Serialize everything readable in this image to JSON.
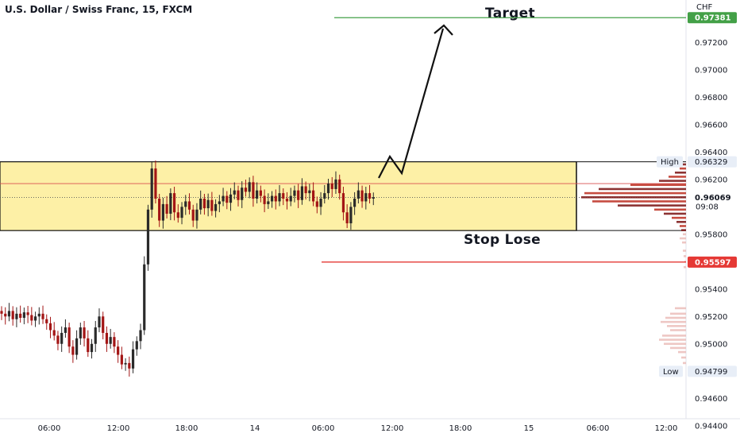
{
  "header": {
    "title": "U.S. Dollar / Swiss Franc, 15, FXCM"
  },
  "annotations": {
    "target": "Target",
    "stop": "Stop Lose"
  },
  "axis": {
    "currency": "CHF"
  },
  "colors": {
    "bull": "#2a2a2a",
    "bear": "#a31515",
    "zone_fill": "#fdf0a6",
    "target": "#43a047",
    "stop": "#e53935",
    "price_line": "#d94f4f",
    "profile_hi": "#c0392b",
    "profile_lo": "#e8b4b0"
  },
  "chart_data": {
    "type": "candlestick",
    "title": "U.S. Dollar / Swiss Franc, 15, FXCM",
    "y_range": [
      0.9432,
      0.9751
    ],
    "y_ticks": [
      0.944,
      0.946,
      0.948,
      0.95,
      0.952,
      0.954,
      0.958,
      0.962,
      0.964,
      0.966,
      0.968,
      0.97,
      0.972
    ],
    "y_tick_labels": [
      "0.94400",
      "0.94600",
      "0.94800",
      "0.95000",
      "0.95200",
      "0.95400",
      "0.95800",
      "0.96200",
      "0.96400",
      "0.96600",
      "0.96800",
      "0.97000",
      "0.97200"
    ],
    "x_ticks": [
      "06:00",
      "12:00",
      "18:00",
      "14",
      "06:00",
      "12:00",
      "18:00",
      "15",
      "06:00",
      "12:00"
    ],
    "price_labels": {
      "target": "0.97381",
      "stop": "0.95597",
      "current": "0.96069",
      "countdown": "09:08",
      "high": "0.96329",
      "low": "0.94799",
      "high_label": "High",
      "low_label": "Low"
    },
    "levels": {
      "target": 0.97381,
      "stop": 0.95597,
      "current": 0.96069,
      "high": 0.96329,
      "low": 0.94799
    },
    "zone": {
      "top": 0.96329,
      "bottom": 0.95827
    },
    "series_close": [
      0.9522,
      0.952,
      0.9524,
      0.9518,
      0.9522,
      0.9519,
      0.9523,
      0.9521,
      0.9517,
      0.952,
      0.9522,
      0.9518,
      0.9515,
      0.951,
      0.9506,
      0.95,
      0.9508,
      0.9512,
      0.9498,
      0.9492,
      0.9504,
      0.9512,
      0.9504,
      0.9494,
      0.95,
      0.9512,
      0.952,
      0.9508,
      0.95,
      0.9505,
      0.9498,
      0.9492,
      0.9485,
      0.9486,
      0.9482,
      0.9496,
      0.9502,
      0.951,
      0.9558,
      0.9598,
      0.9628,
      0.9606,
      0.959,
      0.9602,
      0.9595,
      0.961,
      0.9596,
      0.9592,
      0.96,
      0.9604,
      0.9598,
      0.959,
      0.9598,
      0.9606,
      0.9599,
      0.9605,
      0.9597,
      0.9602,
      0.9604,
      0.9608,
      0.9603,
      0.9609,
      0.9612,
      0.9605,
      0.9614,
      0.9611,
      0.9618,
      0.9606,
      0.9612,
      0.9608,
      0.9602,
      0.9604,
      0.9608,
      0.9604,
      0.961,
      0.9606,
      0.9604,
      0.9608,
      0.9612,
      0.9605,
      0.9615,
      0.961,
      0.9612,
      0.9604,
      0.96,
      0.9606,
      0.961,
      0.9617,
      0.9613,
      0.962,
      0.961,
      0.9596,
      0.9588,
      0.96,
      0.9606,
      0.9612,
      0.9604,
      0.961,
      0.9606,
      0.9607
    ]
  }
}
